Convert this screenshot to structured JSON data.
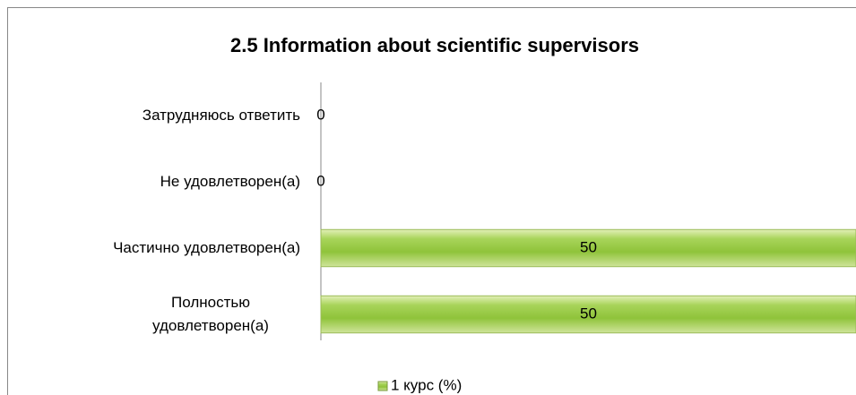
{
  "chart_data": {
    "type": "bar",
    "orientation": "horizontal",
    "title": "2.5 Information about scientific supervisors",
    "categories": [
      "Затрудняюсь ответить",
      "Не удовлетворен(а)",
      "Частично удовлетворен(а)",
      "Полностью удовлетворен(а)"
    ],
    "series": [
      {
        "name": "1 курс (%)",
        "color": "#92c83e",
        "values": [
          0,
          0,
          50,
          50
        ]
      }
    ],
    "legend": "bottom"
  }
}
